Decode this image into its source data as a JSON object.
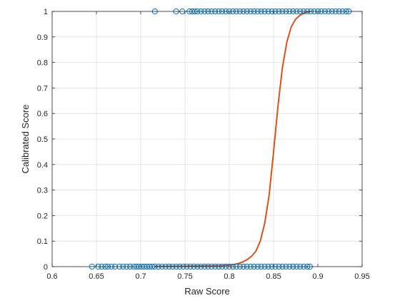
{
  "chart_data": {
    "type": "scatter",
    "xlabel": "Raw Score",
    "ylabel": "Calibrated Score",
    "xlim": [
      0.6,
      0.95
    ],
    "ylim": [
      0,
      1
    ],
    "x_ticks": [
      "0.6",
      "0.65",
      "0.7",
      "0.75",
      "0.8",
      "0.85",
      "0.9",
      "0.95"
    ],
    "y_ticks": [
      "0",
      "0.1",
      "0.2",
      "0.3",
      "0.4",
      "0.5",
      "0.6",
      "0.7",
      "0.8",
      "0.9",
      "1"
    ],
    "grid": true,
    "series": [
      {
        "kind": "markers",
        "marker": "open-circle",
        "color": "#0072BD",
        "points": [
          [
            0.645,
            0
          ],
          [
            0.652,
            0
          ],
          [
            0.656,
            0
          ],
          [
            0.66,
            0
          ],
          [
            0.663,
            0
          ],
          [
            0.667,
            0
          ],
          [
            0.671,
            0
          ],
          [
            0.676,
            0
          ],
          [
            0.68,
            0
          ],
          [
            0.684,
            0
          ],
          [
            0.688,
            0
          ],
          [
            0.692,
            0
          ],
          [
            0.695,
            0
          ],
          [
            0.698,
            0
          ],
          [
            0.701,
            0
          ],
          [
            0.704,
            0
          ],
          [
            0.707,
            0
          ],
          [
            0.71,
            0
          ],
          [
            0.713,
            0
          ],
          [
            0.716,
            0
          ],
          [
            0.72,
            0
          ],
          [
            0.724,
            0
          ],
          [
            0.728,
            0
          ],
          [
            0.732,
            0
          ],
          [
            0.736,
            0
          ],
          [
            0.74,
            0
          ],
          [
            0.744,
            0
          ],
          [
            0.748,
            0
          ],
          [
            0.752,
            0
          ],
          [
            0.756,
            0
          ],
          [
            0.76,
            0
          ],
          [
            0.764,
            0
          ],
          [
            0.768,
            0
          ],
          [
            0.772,
            0
          ],
          [
            0.776,
            0
          ],
          [
            0.78,
            0
          ],
          [
            0.784,
            0
          ],
          [
            0.788,
            0
          ],
          [
            0.792,
            0
          ],
          [
            0.796,
            0
          ],
          [
            0.8,
            0
          ],
          [
            0.804,
            0
          ],
          [
            0.808,
            0
          ],
          [
            0.812,
            0
          ],
          [
            0.816,
            0
          ],
          [
            0.82,
            0
          ],
          [
            0.824,
            0
          ],
          [
            0.828,
            0
          ],
          [
            0.832,
            0
          ],
          [
            0.836,
            0
          ],
          [
            0.84,
            0
          ],
          [
            0.844,
            0
          ],
          [
            0.848,
            0
          ],
          [
            0.852,
            0
          ],
          [
            0.856,
            0
          ],
          [
            0.86,
            0
          ],
          [
            0.864,
            0
          ],
          [
            0.868,
            0
          ],
          [
            0.872,
            0
          ],
          [
            0.876,
            0
          ],
          [
            0.88,
            0
          ],
          [
            0.884,
            0
          ],
          [
            0.888,
            0
          ],
          [
            0.891,
            0
          ],
          [
            0.716,
            1
          ],
          [
            0.74,
            1
          ],
          [
            0.747,
            1
          ],
          [
            0.755,
            1
          ],
          [
            0.758,
            1
          ],
          [
            0.761,
            1
          ],
          [
            0.764,
            1
          ],
          [
            0.768,
            1
          ],
          [
            0.772,
            1
          ],
          [
            0.776,
            1
          ],
          [
            0.78,
            1
          ],
          [
            0.784,
            1
          ],
          [
            0.788,
            1
          ],
          [
            0.792,
            1
          ],
          [
            0.796,
            1
          ],
          [
            0.8,
            1
          ],
          [
            0.804,
            1
          ],
          [
            0.808,
            1
          ],
          [
            0.812,
            1
          ],
          [
            0.816,
            1
          ],
          [
            0.82,
            1
          ],
          [
            0.824,
            1
          ],
          [
            0.828,
            1
          ],
          [
            0.832,
            1
          ],
          [
            0.836,
            1
          ],
          [
            0.84,
            1
          ],
          [
            0.844,
            1
          ],
          [
            0.848,
            1
          ],
          [
            0.852,
            1
          ],
          [
            0.856,
            1
          ],
          [
            0.86,
            1
          ],
          [
            0.864,
            1
          ],
          [
            0.868,
            1
          ],
          [
            0.872,
            1
          ],
          [
            0.876,
            1
          ],
          [
            0.88,
            1
          ],
          [
            0.884,
            1
          ],
          [
            0.888,
            1
          ],
          [
            0.892,
            1
          ],
          [
            0.896,
            1
          ],
          [
            0.9,
            1
          ],
          [
            0.904,
            1
          ],
          [
            0.908,
            1
          ],
          [
            0.912,
            1
          ],
          [
            0.916,
            1
          ],
          [
            0.92,
            1
          ],
          [
            0.924,
            1
          ],
          [
            0.928,
            1
          ],
          [
            0.932,
            1
          ],
          [
            0.935,
            1
          ]
        ]
      },
      {
        "kind": "line",
        "color": "#D95319",
        "points": [
          [
            0.716,
            0.001
          ],
          [
            0.75,
            0.002
          ],
          [
            0.78,
            0.003
          ],
          [
            0.79,
            0.004
          ],
          [
            0.8,
            0.006
          ],
          [
            0.805,
            0.008
          ],
          [
            0.81,
            0.012
          ],
          [
            0.815,
            0.018
          ],
          [
            0.82,
            0.027
          ],
          [
            0.825,
            0.04
          ],
          [
            0.83,
            0.06
          ],
          [
            0.835,
            0.1
          ],
          [
            0.84,
            0.17
          ],
          [
            0.845,
            0.28
          ],
          [
            0.85,
            0.45
          ],
          [
            0.855,
            0.63
          ],
          [
            0.86,
            0.78
          ],
          [
            0.865,
            0.88
          ],
          [
            0.87,
            0.94
          ],
          [
            0.875,
            0.97
          ],
          [
            0.88,
            0.985
          ],
          [
            0.885,
            0.995
          ],
          [
            0.892,
            1.0
          ]
        ]
      }
    ]
  }
}
